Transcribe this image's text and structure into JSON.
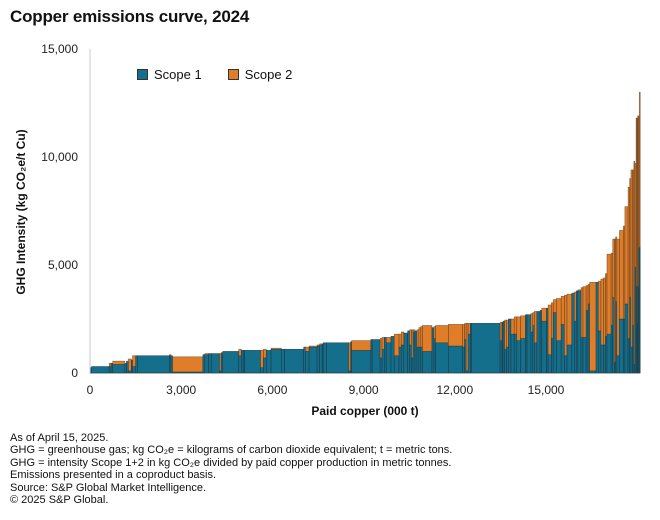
{
  "title": "Copper emissions curve, 2024",
  "legend": [
    {
      "label": "Scope 1",
      "color": "#136f8c"
    },
    {
      "label": "Scope 2",
      "color": "#e07d28"
    }
  ],
  "notes": [
    "As of April 15, 2025.",
    "GHG = greenhouse gas; kg CO₂e = kilograms of carbon dioxide equivalent; t = metric tons.",
    "GHG = intensity Scope 1+2 in kg CO₂e divided by paid copper production in metric tonnes.",
    "Emissions presented in a coproduct basis.",
    "Source: S&P Global Market Intelligence.",
    "© 2025 S&P Global."
  ],
  "chart_data": {
    "type": "bar",
    "subtype": "variable-width stacked cost curve",
    "title": "Copper emissions curve, 2024",
    "xlabel": "Paid copper (000 t)",
    "ylabel": "GHG Intensity (kg CO₂e/t Cu)",
    "xlim": [
      0,
      18100
    ],
    "ylim": [
      0,
      15000
    ],
    "xticks": [
      0,
      3000,
      6000,
      9000,
      12000,
      15000
    ],
    "xtick_labels": [
      "0",
      "3,000",
      "6,000",
      "9,000",
      "12,000",
      "15,000"
    ],
    "yticks": [
      0,
      5000,
      10000,
      15000
    ],
    "ytick_labels": [
      "0",
      "5,000",
      "10,000",
      "15,000"
    ],
    "legend_position": "top-left",
    "series_names": [
      "Scope 1",
      "Scope 2"
    ],
    "bars_note": "each bar: [width in 000 t, Scope 1 intensity, Scope 2 intensity]",
    "bars": [
      [
        50,
        250,
        0
      ],
      [
        550,
        300,
        0
      ],
      [
        60,
        300,
        150
      ],
      [
        50,
        450,
        0
      ],
      [
        380,
        400,
        150
      ],
      [
        50,
        450,
        0
      ],
      [
        60,
        550,
        0
      ],
      [
        90,
        100,
        550
      ],
      [
        40,
        600,
        0
      ],
      [
        100,
        300,
        500
      ],
      [
        50,
        800,
        0
      ],
      [
        1000,
        800,
        0
      ],
      [
        50,
        800,
        50
      ],
      [
        50,
        800,
        0
      ],
      [
        950,
        50,
        700
      ],
      [
        60,
        850,
        0
      ],
      [
        120,
        850,
        50
      ],
      [
        80,
        900,
        0
      ],
      [
        260,
        900,
        0
      ],
      [
        50,
        100,
        800
      ],
      [
        50,
        900,
        50
      ],
      [
        500,
        1000,
        0
      ],
      [
        80,
        800,
        300
      ],
      [
        60,
        1050,
        0
      ],
      [
        40,
        1050,
        0
      ],
      [
        500,
        1050,
        0
      ],
      [
        90,
        250,
        800
      ],
      [
        90,
        700,
        400
      ],
      [
        150,
        1050,
        0
      ],
      [
        320,
        1100,
        50
      ],
      [
        100,
        1100,
        0
      ],
      [
        600,
        1100,
        0
      ],
      [
        50,
        1200,
        0
      ],
      [
        120,
        1000,
        200
      ],
      [
        250,
        1200,
        50
      ],
      [
        80,
        1250,
        50
      ],
      [
        80,
        1300,
        50
      ],
      [
        30,
        1350,
        0
      ],
      [
        100,
        1400,
        0
      ],
      [
        700,
        1400,
        0
      ],
      [
        60,
        100,
        1300
      ],
      [
        30,
        1450,
        0
      ],
      [
        600,
        1050,
        450
      ],
      [
        40,
        1550,
        0
      ],
      [
        250,
        1550,
        0
      ],
      [
        60,
        700,
        900
      ],
      [
        70,
        1100,
        550
      ],
      [
        60,
        1650,
        0
      ],
      [
        150,
        1400,
        250
      ],
      [
        100,
        1700,
        0
      ],
      [
        150,
        800,
        1000
      ],
      [
        70,
        1200,
        600
      ],
      [
        80,
        1300,
        600
      ],
      [
        120,
        1850,
        0
      ],
      [
        60,
        1950,
        0
      ],
      [
        60,
        1300,
        700
      ],
      [
        50,
        700,
        1300
      ],
      [
        60,
        1900,
        100
      ],
      [
        60,
        1950,
        0
      ],
      [
        60,
        1200,
        800
      ],
      [
        60,
        1200,
        900
      ],
      [
        50,
        1200,
        950
      ],
      [
        300,
        1000,
        1200
      ],
      [
        60,
        2100,
        0
      ],
      [
        50,
        1600,
        550
      ],
      [
        400,
        1400,
        800
      ],
      [
        450,
        1250,
        1000
      ],
      [
        60,
        1200,
        1050
      ],
      [
        50,
        1550,
        750
      ],
      [
        60,
        100,
        2200
      ],
      [
        70,
        1800,
        500
      ],
      [
        30,
        2300,
        0
      ],
      [
        900,
        2300,
        0
      ],
      [
        60,
        1500,
        850
      ],
      [
        30,
        2350,
        0
      ],
      [
        50,
        2400,
        0
      ],
      [
        60,
        1100,
        1350
      ],
      [
        60,
        1200,
        1250
      ],
      [
        80,
        2500,
        0
      ],
      [
        100,
        1800,
        700
      ],
      [
        80,
        1800,
        800
      ],
      [
        120,
        1500,
        1100
      ],
      [
        150,
        1600,
        1050
      ],
      [
        50,
        2700,
        0
      ],
      [
        120,
        2700,
        0
      ],
      [
        60,
        1900,
        850
      ],
      [
        50,
        2200,
        600
      ],
      [
        80,
        1400,
        1450
      ],
      [
        100,
        2850,
        0
      ],
      [
        50,
        2900,
        0
      ],
      [
        150,
        2400,
        600
      ],
      [
        50,
        3000,
        0
      ],
      [
        100,
        850,
        2300
      ],
      [
        60,
        1600,
        1650
      ],
      [
        100,
        2800,
        600
      ],
      [
        150,
        1500,
        1950
      ],
      [
        100,
        2250,
        1300
      ],
      [
        80,
        800,
        2800
      ],
      [
        150,
        1300,
        2350
      ],
      [
        80,
        3700,
        0
      ],
      [
        60,
        2400,
        1350
      ],
      [
        50,
        3800,
        0
      ],
      [
        100,
        3800,
        50
      ],
      [
        60,
        1650,
        2300
      ],
      [
        100,
        1650,
        2350
      ],
      [
        60,
        2900,
        1150
      ],
      [
        50,
        3200,
        900
      ],
      [
        200,
        100,
        4100
      ],
      [
        70,
        4200,
        0
      ],
      [
        80,
        1950,
        2300
      ],
      [
        80,
        1300,
        3050
      ],
      [
        60,
        1300,
        3100
      ],
      [
        50,
        1700,
        2900
      ],
      [
        130,
        1800,
        3700
      ],
      [
        50,
        2200,
        3350
      ],
      [
        50,
        3500,
        2700
      ],
      [
        40,
        500,
        5700
      ],
      [
        40,
        3300,
        3000
      ],
      [
        80,
        800,
        5400
      ],
      [
        120,
        2500,
        4100
      ],
      [
        50,
        2500,
        4300
      ],
      [
        100,
        3200,
        4500
      ],
      [
        50,
        1600,
        7000
      ],
      [
        40,
        3500,
        5500
      ],
      [
        50,
        1200,
        8200
      ],
      [
        40,
        2200,
        7200
      ],
      [
        30,
        400,
        9400
      ],
      [
        40,
        4900,
        4800
      ],
      [
        30,
        4000,
        7800
      ],
      [
        20,
        2300,
        9500
      ],
      [
        30,
        4000,
        7900
      ],
      [
        20,
        5800,
        6100
      ],
      [
        30,
        5800,
        7200
      ]
    ]
  }
}
